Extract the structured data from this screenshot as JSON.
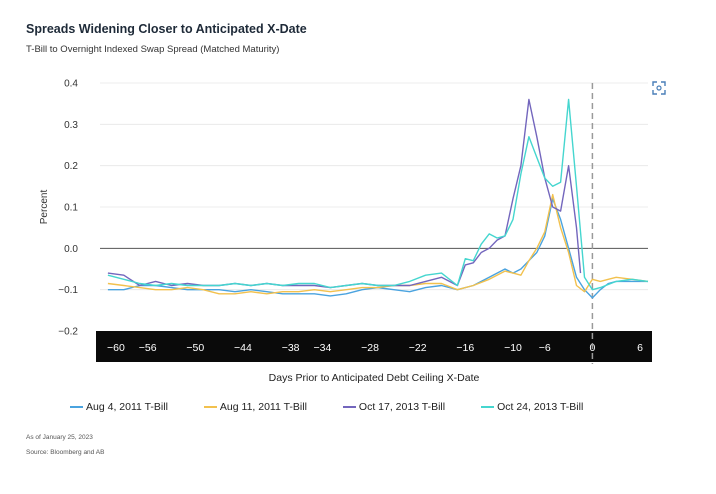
{
  "header": {
    "title": "Spreads Widening Closer to Anticipated X-Date",
    "subtitle": "T-Bill to Overnight Indexed Swap Spread (Matched Maturity)"
  },
  "footnotes": {
    "as_of": "As of January 25, 2023",
    "source": "Source: Bloomberg and AB"
  },
  "icons": {
    "expand": "expand-icon"
  },
  "chart_data": {
    "type": "line",
    "title": "Spreads Widening Closer to Anticipated X-Date",
    "subtitle": "T-Bill to Overnight Indexed Swap Spread (Matched Maturity)",
    "xlabel": "Days Prior to Anticipated Debt Ceiling X-Date",
    "ylabel": "Percent",
    "xlim": [
      -62,
      7
    ],
    "ylim": [
      -0.2,
      0.4
    ],
    "x_ticks": [
      -60,
      -56,
      -50,
      -44,
      -38,
      -34,
      -28,
      -22,
      -16,
      -10,
      -6,
      0,
      6
    ],
    "y_ticks": [
      -0.2,
      -0.1,
      0.0,
      0.1,
      0.2,
      0.3,
      0.4
    ],
    "y_tick_labels": [
      "−0.2",
      "−0.1",
      "0.0",
      "0.1",
      "0.2",
      "0.3",
      "0.4"
    ],
    "x_tick_labels": [
      "−60",
      "−56",
      "−50",
      "−44",
      "−38",
      "−34",
      "−28",
      "−22",
      "−16",
      "−10",
      "−6",
      "0",
      "6"
    ],
    "x_date_marker": 0,
    "grid": "horizontal",
    "legend_position": "bottom",
    "series": [
      {
        "name": "Aug 4, 2011 T-Bill",
        "color": "#4aa3df",
        "points": [
          [
            -61,
            -0.1
          ],
          [
            -59,
            -0.1
          ],
          [
            -57,
            -0.09
          ],
          [
            -55,
            -0.09
          ],
          [
            -53,
            -0.095
          ],
          [
            -51,
            -0.1
          ],
          [
            -49,
            -0.1
          ],
          [
            -47,
            -0.1
          ],
          [
            -45,
            -0.105
          ],
          [
            -43,
            -0.1
          ],
          [
            -41,
            -0.105
          ],
          [
            -39,
            -0.11
          ],
          [
            -37,
            -0.11
          ],
          [
            -35,
            -0.11
          ],
          [
            -33,
            -0.115
          ],
          [
            -31,
            -0.11
          ],
          [
            -29,
            -0.1
          ],
          [
            -27,
            -0.095
          ],
          [
            -25,
            -0.1
          ],
          [
            -23,
            -0.105
          ],
          [
            -21,
            -0.095
          ],
          [
            -19,
            -0.09
          ],
          [
            -17,
            -0.1
          ],
          [
            -15,
            -0.09
          ],
          [
            -13,
            -0.07
          ],
          [
            -11,
            -0.05
          ],
          [
            -10,
            -0.06
          ],
          [
            -9,
            -0.05
          ],
          [
            -8,
            -0.03
          ],
          [
            -7,
            -0.01
          ],
          [
            -6,
            0.03
          ],
          [
            -5,
            0.12
          ],
          [
            -4,
            0.07
          ],
          [
            -3,
            0.0
          ],
          [
            -2,
            -0.07
          ],
          [
            -1,
            -0.1
          ],
          [
            0,
            -0.12
          ],
          [
            1,
            -0.1
          ],
          [
            2,
            -0.085
          ],
          [
            3,
            -0.08
          ],
          [
            5,
            -0.08
          ],
          [
            7,
            -0.08
          ]
        ]
      },
      {
        "name": "Aug 11, 2011 T-Bill",
        "color": "#f2c14e",
        "points": [
          [
            -61,
            -0.085
          ],
          [
            -59,
            -0.09
          ],
          [
            -57,
            -0.095
          ],
          [
            -55,
            -0.1
          ],
          [
            -53,
            -0.1
          ],
          [
            -51,
            -0.095
          ],
          [
            -49,
            -0.1
          ],
          [
            -47,
            -0.11
          ],
          [
            -45,
            -0.11
          ],
          [
            -43,
            -0.105
          ],
          [
            -41,
            -0.11
          ],
          [
            -39,
            -0.105
          ],
          [
            -37,
            -0.105
          ],
          [
            -35,
            -0.1
          ],
          [
            -33,
            -0.105
          ],
          [
            -31,
            -0.1
          ],
          [
            -29,
            -0.095
          ],
          [
            -27,
            -0.095
          ],
          [
            -25,
            -0.09
          ],
          [
            -23,
            -0.09
          ],
          [
            -21,
            -0.085
          ],
          [
            -19,
            -0.085
          ],
          [
            -17,
            -0.1
          ],
          [
            -15,
            -0.09
          ],
          [
            -13,
            -0.075
          ],
          [
            -11,
            -0.055
          ],
          [
            -10,
            -0.06
          ],
          [
            -9,
            -0.065
          ],
          [
            -8,
            -0.03
          ],
          [
            -7,
            0.0
          ],
          [
            -6,
            0.04
          ],
          [
            -5,
            0.13
          ],
          [
            -4,
            0.05
          ],
          [
            -3,
            -0.01
          ],
          [
            -2,
            -0.09
          ],
          [
            -1,
            -0.105
          ],
          [
            0,
            -0.075
          ],
          [
            1,
            -0.08
          ],
          [
            2,
            -0.075
          ],
          [
            3,
            -0.07
          ],
          [
            5,
            -0.075
          ],
          [
            7,
            -0.08
          ]
        ]
      },
      {
        "name": "Oct 17, 2013 T-Bill",
        "color": "#7366bd",
        "points": [
          [
            -61,
            -0.06
          ],
          [
            -59,
            -0.065
          ],
          [
            -57,
            -0.09
          ],
          [
            -55,
            -0.08
          ],
          [
            -53,
            -0.09
          ],
          [
            -51,
            -0.085
          ],
          [
            -49,
            -0.09
          ],
          [
            -47,
            -0.09
          ],
          [
            -45,
            -0.085
          ],
          [
            -43,
            -0.09
          ],
          [
            -41,
            -0.085
          ],
          [
            -39,
            -0.09
          ],
          [
            -37,
            -0.09
          ],
          [
            -35,
            -0.09
          ],
          [
            -33,
            -0.095
          ],
          [
            -31,
            -0.09
          ],
          [
            -29,
            -0.085
          ],
          [
            -27,
            -0.09
          ],
          [
            -25,
            -0.09
          ],
          [
            -23,
            -0.09
          ],
          [
            -21,
            -0.08
          ],
          [
            -19,
            -0.07
          ],
          [
            -17,
            -0.09
          ],
          [
            -16,
            -0.04
          ],
          [
            -15,
            -0.035
          ],
          [
            -14,
            -0.01
          ],
          [
            -13,
            0.0
          ],
          [
            -12,
            0.02
          ],
          [
            -11,
            0.03
          ],
          [
            -10,
            0.12
          ],
          [
            -9,
            0.2
          ],
          [
            -8,
            0.36
          ],
          [
            -7,
            0.27
          ],
          [
            -6,
            0.17
          ],
          [
            -5,
            0.1
          ],
          [
            -4,
            0.09
          ],
          [
            -3,
            0.2
          ],
          [
            -2,
            0.05
          ],
          [
            -1.5,
            -0.06
          ]
        ]
      },
      {
        "name": "Oct 24, 2013 T-Bill",
        "color": "#45d6cf",
        "points": [
          [
            -61,
            -0.065
          ],
          [
            -59,
            -0.075
          ],
          [
            -57,
            -0.085
          ],
          [
            -55,
            -0.09
          ],
          [
            -53,
            -0.085
          ],
          [
            -51,
            -0.09
          ],
          [
            -49,
            -0.09
          ],
          [
            -47,
            -0.09
          ],
          [
            -45,
            -0.085
          ],
          [
            -43,
            -0.09
          ],
          [
            -41,
            -0.085
          ],
          [
            -39,
            -0.09
          ],
          [
            -37,
            -0.085
          ],
          [
            -35,
            -0.085
          ],
          [
            -33,
            -0.095
          ],
          [
            -31,
            -0.09
          ],
          [
            -29,
            -0.085
          ],
          [
            -27,
            -0.09
          ],
          [
            -25,
            -0.09
          ],
          [
            -23,
            -0.08
          ],
          [
            -21,
            -0.065
          ],
          [
            -19,
            -0.06
          ],
          [
            -17,
            -0.09
          ],
          [
            -16,
            -0.025
          ],
          [
            -15,
            -0.03
          ],
          [
            -14,
            0.01
          ],
          [
            -13,
            0.035
          ],
          [
            -12,
            0.025
          ],
          [
            -11,
            0.03
          ],
          [
            -10,
            0.07
          ],
          [
            -9,
            0.18
          ],
          [
            -8,
            0.27
          ],
          [
            -7,
            0.22
          ],
          [
            -6,
            0.17
          ],
          [
            -5,
            0.15
          ],
          [
            -4,
            0.16
          ],
          [
            -3,
            0.36
          ],
          [
            -2,
            0.15
          ],
          [
            -1,
            -0.07
          ],
          [
            0,
            -0.1
          ],
          [
            1,
            -0.095
          ],
          [
            3,
            -0.08
          ],
          [
            5,
            -0.075
          ],
          [
            7,
            -0.08
          ]
        ]
      }
    ]
  }
}
